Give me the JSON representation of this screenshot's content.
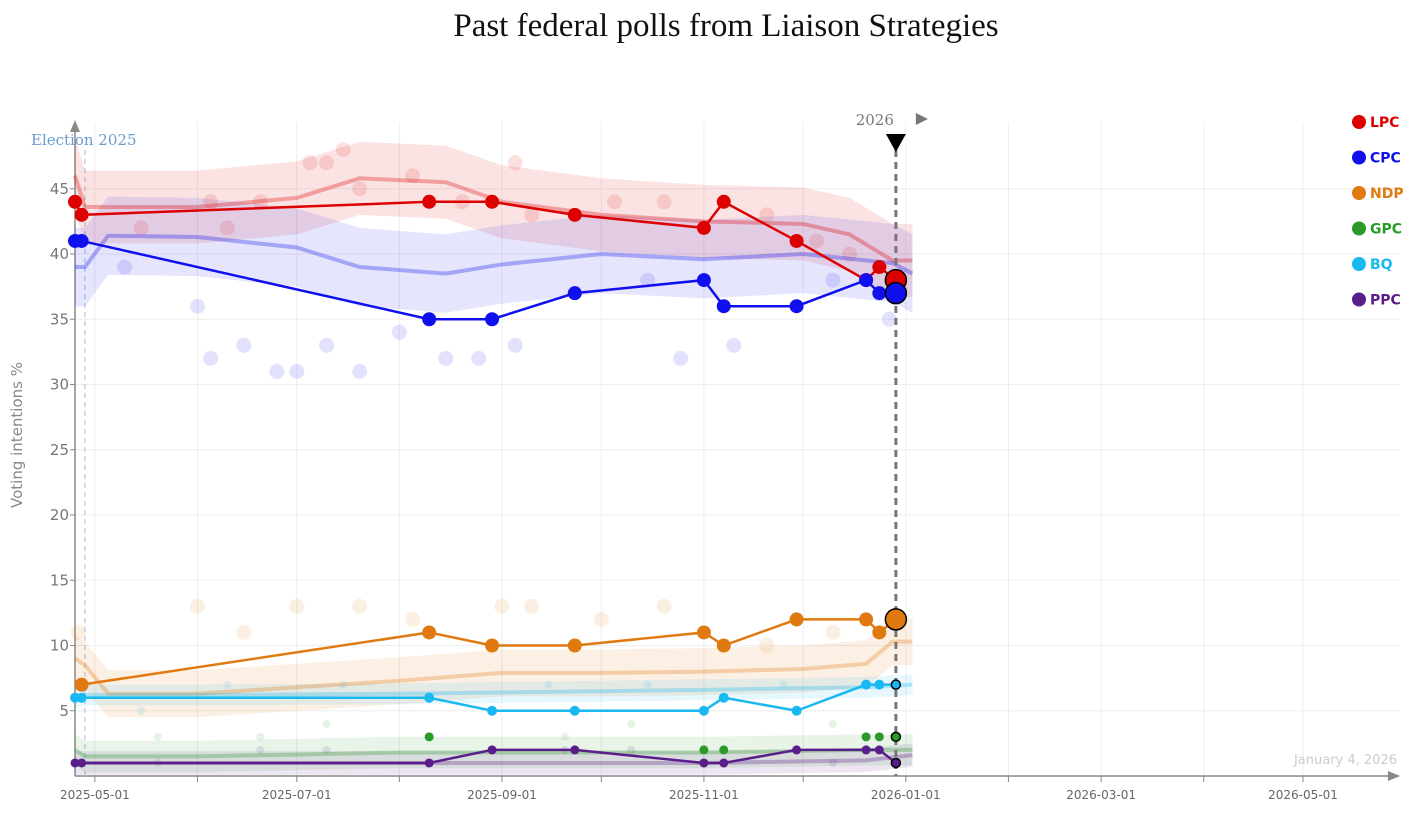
{
  "chart_data": {
    "type": "line",
    "title": "Past federal polls from Liaison Strategies",
    "ylabel": "Voting intentions %",
    "xlabel": "",
    "ylim": [
      0,
      49
    ],
    "xlim": [
      "2025-04-25",
      "2026-06-05"
    ],
    "yticks": [
      5,
      10,
      15,
      20,
      25,
      30,
      35,
      40,
      45
    ],
    "xticks": [
      "2025-05-01",
      "2025-07-01",
      "2025-09-01",
      "2025-11-01",
      "2026-01-01",
      "2026-03-01",
      "2026-05-01"
    ],
    "grid": true,
    "legend_position": "top-right",
    "election_label": "Election 2025",
    "election_date": "2025-04-28",
    "year_marker_label": "2026",
    "current_date": "2025-12-29",
    "date_stamp": "January 4, 2026",
    "poll_dates": [
      "2025-04-25",
      "2025-04-27",
      "2025-08-10",
      "2025-08-29",
      "2025-09-23",
      "2025-11-01",
      "2025-11-07",
      "2025-11-29",
      "2025-12-20",
      "2025-12-24",
      "2025-12-29"
    ],
    "series": [
      {
        "name": "LPC",
        "color": "#dd0000",
        "values": [
          44,
          43,
          44,
          44,
          43,
          42,
          44,
          41,
          38,
          39,
          38
        ],
        "trend": {
          "dates": [
            "2025-04-25",
            "2025-04-28",
            "2025-06-01",
            "2025-07-01",
            "2025-07-20",
            "2025-08-15",
            "2025-09-01",
            "2025-10-01",
            "2025-11-01",
            "2025-12-01",
            "2025-12-15",
            "2025-12-28",
            "2026-01-03"
          ],
          "values": [
            46,
            43.6,
            43.6,
            44.3,
            45.8,
            45.5,
            44,
            43,
            42.5,
            42.3,
            41.5,
            39.5,
            39.5
          ]
        },
        "band": 2.8,
        "others": [
          [
            "2025-05-15",
            42
          ],
          [
            "2025-06-05",
            44
          ],
          [
            "2025-06-10",
            42
          ],
          [
            "2025-06-20",
            44
          ],
          [
            "2025-07-05",
            47
          ],
          [
            "2025-07-10",
            47
          ],
          [
            "2025-07-15",
            48
          ],
          [
            "2025-07-20",
            45
          ],
          [
            "2025-08-05",
            46
          ],
          [
            "2025-08-20",
            44
          ],
          [
            "2025-09-05",
            47
          ],
          [
            "2025-09-10",
            43
          ],
          [
            "2025-10-05",
            44
          ],
          [
            "2025-10-20",
            44
          ],
          [
            "2025-11-20",
            43
          ],
          [
            "2025-12-05",
            41
          ],
          [
            "2025-12-15",
            40
          ]
        ]
      },
      {
        "name": "CPC",
        "color": "#1010ee",
        "values": [
          41,
          41,
          35,
          35,
          37,
          38,
          36,
          36,
          38,
          37,
          37
        ],
        "trend": {
          "dates": [
            "2025-04-25",
            "2025-04-28",
            "2025-05-05",
            "2025-06-01",
            "2025-07-01",
            "2025-07-20",
            "2025-08-15",
            "2025-09-01",
            "2025-10-01",
            "2025-11-01",
            "2025-12-01",
            "2025-12-28",
            "2026-01-03"
          ],
          "values": [
            39,
            39,
            41.4,
            41.3,
            40.5,
            39,
            38.5,
            39.2,
            40,
            39.6,
            40,
            39.3,
            38.5
          ]
        },
        "band": 3,
        "others": [
          [
            "2025-05-10",
            39
          ],
          [
            "2025-06-01",
            36
          ],
          [
            "2025-06-05",
            32
          ],
          [
            "2025-06-15",
            33
          ],
          [
            "2025-06-25",
            31
          ],
          [
            "2025-07-01",
            31
          ],
          [
            "2025-07-10",
            33
          ],
          [
            "2025-07-20",
            31
          ],
          [
            "2025-08-01",
            34
          ],
          [
            "2025-08-15",
            32
          ],
          [
            "2025-08-25",
            32
          ],
          [
            "2025-09-05",
            33
          ],
          [
            "2025-10-15",
            38
          ],
          [
            "2025-10-25",
            32
          ],
          [
            "2025-11-10",
            33
          ],
          [
            "2025-12-10",
            38
          ],
          [
            "2025-12-27",
            35
          ]
        ]
      },
      {
        "name": "NDP",
        "color": "#e07a10",
        "values": [
          null,
          7,
          11,
          10,
          10,
          11,
          10,
          12,
          12,
          11,
          12
        ],
        "trend": {
          "dates": [
            "2025-04-25",
            "2025-04-28",
            "2025-05-05",
            "2025-06-01",
            "2025-07-01",
            "2025-08-01",
            "2025-09-01",
            "2025-10-01",
            "2025-11-01",
            "2025-12-01",
            "2025-12-20",
            "2025-12-28",
            "2026-01-03"
          ],
          "values": [
            9,
            8.5,
            6.3,
            6.3,
            6.8,
            7.3,
            7.9,
            7.9,
            8,
            8.2,
            8.6,
            10.3,
            10.3
          ]
        },
        "band": 1.8,
        "others": [
          [
            "2025-04-26",
            11
          ],
          [
            "2025-06-01",
            13
          ],
          [
            "2025-06-15",
            11
          ],
          [
            "2025-07-01",
            13
          ],
          [
            "2025-07-20",
            13
          ],
          [
            "2025-08-05",
            12
          ],
          [
            "2025-09-01",
            13
          ],
          [
            "2025-09-10",
            13
          ],
          [
            "2025-10-01",
            12
          ],
          [
            "2025-10-20",
            13
          ],
          [
            "2025-11-20",
            10
          ],
          [
            "2025-12-10",
            11
          ]
        ]
      },
      {
        "name": "GPC",
        "color": "#2a9a2a",
        "values": [
          null,
          null,
          3,
          null,
          null,
          2,
          2,
          null,
          3,
          3,
          3
        ],
        "trend": {
          "dates": [
            "2025-04-25",
            "2025-04-28",
            "2025-06-01",
            "2025-08-01",
            "2025-11-01",
            "2025-12-20",
            "2026-01-03"
          ],
          "values": [
            2,
            1.5,
            1.5,
            1.8,
            1.8,
            2,
            2
          ]
        },
        "band": 1.2,
        "others": [
          [
            "2025-05-20",
            3
          ],
          [
            "2025-06-20",
            3
          ],
          [
            "2025-07-10",
            4
          ],
          [
            "2025-09-20",
            3
          ],
          [
            "2025-10-10",
            4
          ],
          [
            "2025-12-10",
            4
          ]
        ]
      },
      {
        "name": "BQ",
        "color": "#1ab8f0",
        "values": [
          6,
          6,
          6,
          5,
          5,
          5,
          6,
          5,
          7,
          7,
          7
        ],
        "trend": {
          "dates": [
            "2025-04-25",
            "2025-04-28",
            "2025-06-01",
            "2025-08-01",
            "2025-11-01",
            "2025-12-20",
            "2026-01-03"
          ],
          "values": [
            6,
            6.2,
            6.2,
            6.3,
            6.6,
            6.8,
            7
          ]
        },
        "band": 0.8,
        "others": [
          [
            "2025-05-15",
            5
          ],
          [
            "2025-06-10",
            7
          ],
          [
            "2025-07-15",
            7
          ],
          [
            "2025-09-15",
            7
          ],
          [
            "2025-10-15",
            7
          ],
          [
            "2025-11-25",
            7
          ]
        ]
      },
      {
        "name": "PPC",
        "color": "#5a1e8a",
        "values": [
          1,
          1,
          1,
          2,
          2,
          1,
          1,
          2,
          2,
          2,
          1
        ],
        "trend": {
          "dates": [
            "2025-04-25",
            "2025-04-28",
            "2025-06-01",
            "2025-08-01",
            "2025-11-01",
            "2025-12-20",
            "2026-01-03"
          ],
          "values": [
            1,
            1,
            1,
            1,
            1,
            1.2,
            1.6
          ]
        },
        "band": 0.9,
        "others": [
          [
            "2025-05-20",
            1
          ],
          [
            "2025-06-20",
            2
          ],
          [
            "2025-07-10",
            2
          ],
          [
            "2025-09-20",
            2
          ],
          [
            "2025-10-10",
            2
          ],
          [
            "2025-12-10",
            1
          ]
        ]
      }
    ]
  }
}
